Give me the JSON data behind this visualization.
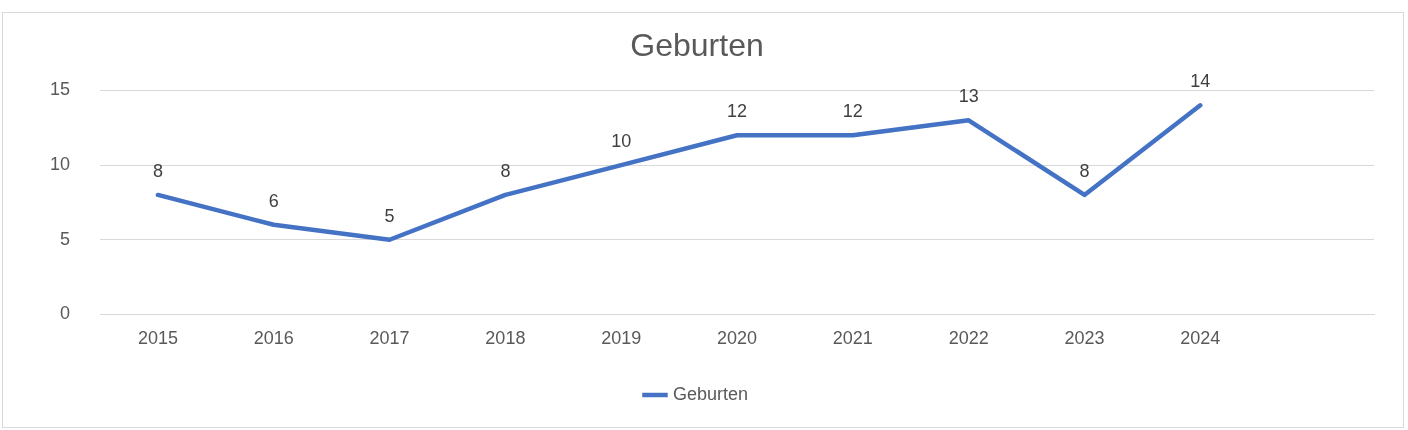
{
  "chart_data": {
    "type": "line",
    "title": "Geburten",
    "categories": [
      "2015",
      "2016",
      "2017",
      "2018",
      "2019",
      "2020",
      "2021",
      "2022",
      "2023",
      "2024",
      null
    ],
    "series": [
      {
        "name": "Geburten",
        "color": "#4472c4",
        "values": [
          8,
          6,
          5,
          8,
          10,
          12,
          12,
          13,
          8,
          14,
          null
        ]
      }
    ],
    "ylim": [
      0,
      15
    ],
    "yticks": [
      0,
      5,
      10,
      15
    ],
    "grid": "y",
    "legend": "bottom",
    "marker": "none",
    "line_style": "solid",
    "data_labels": true
  }
}
